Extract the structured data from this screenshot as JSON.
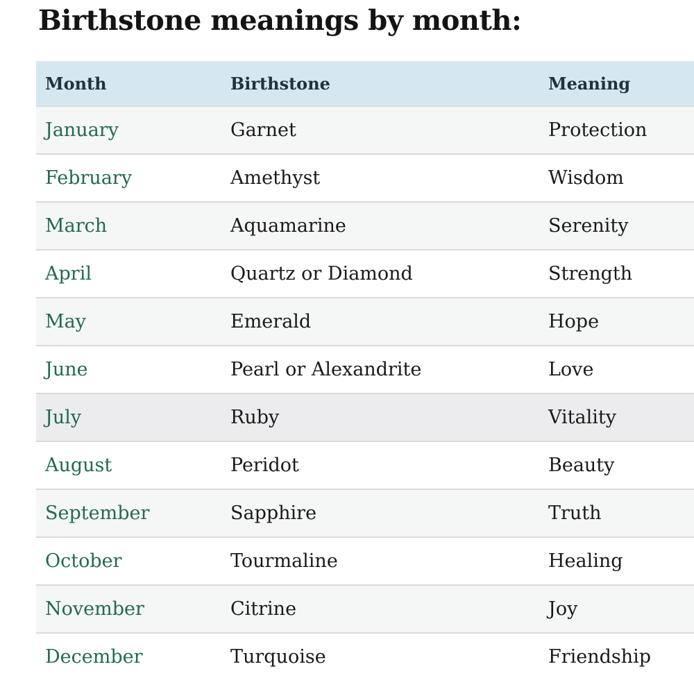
{
  "page": {
    "title": "Birthstone meanings by month:"
  },
  "theme": {
    "header_bg": "#d6e8ef",
    "header_text": "#233239",
    "body_text": "#1a1a1a",
    "link_green": "#236952",
    "row_bg": "#ffffff",
    "row_alt_bg": "#f5f6f6",
    "row_highlight_bg": "#ececee",
    "divider": "#d9dadb"
  },
  "table": {
    "columns": [
      "Month",
      "Birthstone",
      "Meaning"
    ],
    "rows": [
      {
        "month": "January",
        "birthstone": "Garnet",
        "meaning": "Protection"
      },
      {
        "month": "February",
        "birthstone": "Amethyst",
        "meaning": "Wisdom"
      },
      {
        "month": "March",
        "birthstone": "Aquamarine",
        "meaning": "Serenity"
      },
      {
        "month": "April",
        "birthstone": "Quartz or Diamond",
        "meaning": "Strength"
      },
      {
        "month": "May",
        "birthstone": "Emerald",
        "meaning": "Hope"
      },
      {
        "month": "June",
        "birthstone": "Pearl or Alexandrite",
        "meaning": "Love"
      },
      {
        "month": "July",
        "birthstone": "Ruby",
        "meaning": "Vitality",
        "highlighted": true
      },
      {
        "month": "August",
        "birthstone": "Peridot",
        "meaning": "Beauty"
      },
      {
        "month": "September",
        "birthstone": "Sapphire",
        "meaning": "Truth"
      },
      {
        "month": "October",
        "birthstone": "Tourmaline",
        "meaning": "Healing"
      },
      {
        "month": "November",
        "birthstone": "Citrine",
        "meaning": "Joy"
      },
      {
        "month": "December",
        "birthstone": "Turquoise",
        "meaning": "Friendship"
      }
    ]
  }
}
